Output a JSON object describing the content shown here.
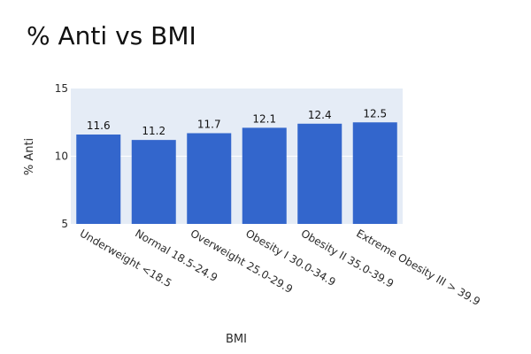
{
  "chart_data": {
    "type": "bar",
    "title": "% Anti vs BMI",
    "xlabel": "BMI",
    "ylabel": "% Anti",
    "categories": [
      "Underweight <18.5",
      "Normal 18.5-24.9",
      "Overweight 25.0-29.9",
      "Obesity I 30.0-34.9",
      "Obesity II 35.0-39.9",
      "Extreme Obesity III > 39.9"
    ],
    "values": [
      11.6,
      11.2,
      11.7,
      12.1,
      12.4,
      12.5
    ],
    "data_labels": [
      "11.6",
      "11.2",
      "11.7",
      "12.1",
      "12.4",
      "12.5"
    ],
    "ylim": [
      5,
      15
    ],
    "yticks": [
      "5",
      "10",
      "15"
    ],
    "grid": true,
    "legend": "none",
    "colors": {
      "bar": "#3366cc",
      "plot_background": "#e5ecf6",
      "gridline": "#ffffff"
    }
  }
}
